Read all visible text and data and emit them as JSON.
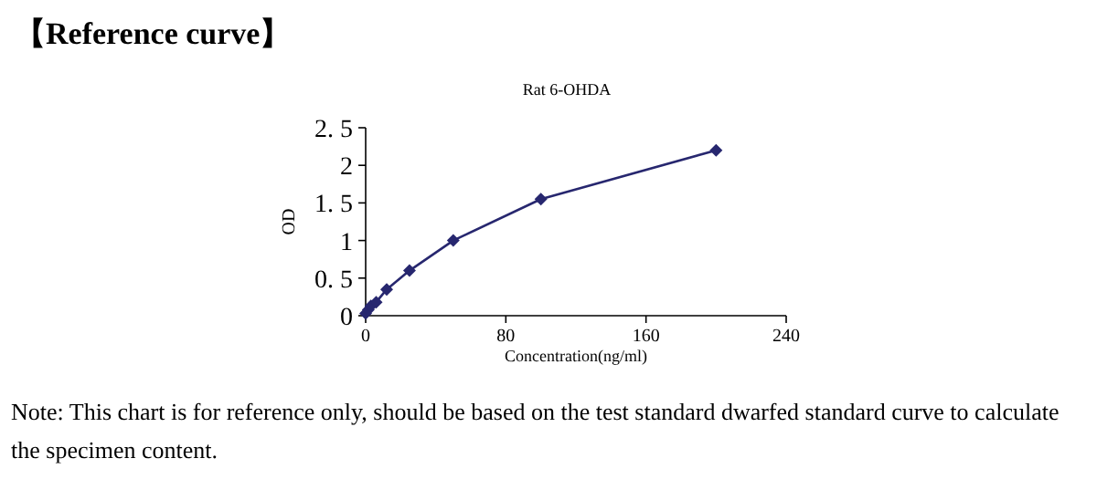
{
  "chart_data": {
    "type": "line",
    "title": "【Reference curve】",
    "subtitle": "Rat 6-OHDA",
    "xlabel": "Concentration(ng/ml)",
    "ylabel": "OD",
    "x": [
      0,
      1.5,
      3,
      6,
      12,
      25,
      50,
      100,
      200
    ],
    "series": [
      {
        "color": "#27276f",
        "values": [
          0.03,
          0.08,
          0.13,
          0.18,
          0.35,
          0.6,
          1.0,
          1.55,
          2.2
        ]
      }
    ],
    "xlim": [
      0,
      240
    ],
    "xticks": [
      0,
      80,
      160,
      240
    ],
    "ylim": [
      0,
      2.5
    ],
    "yticks": [
      0,
      {
        "value": 0.5,
        "label": "0. 5"
      },
      1,
      {
        "value": 1.5,
        "label": "1. 5"
      },
      2,
      {
        "value": 2.5,
        "label": "2. 5"
      }
    ],
    "marker": "diamond",
    "line_style": "solid",
    "grid": false,
    "annotations": [
      "Note: This chart is for reference only, should be based on the test standard dwarfed standard curve to calculate the specimen content."
    ]
  }
}
